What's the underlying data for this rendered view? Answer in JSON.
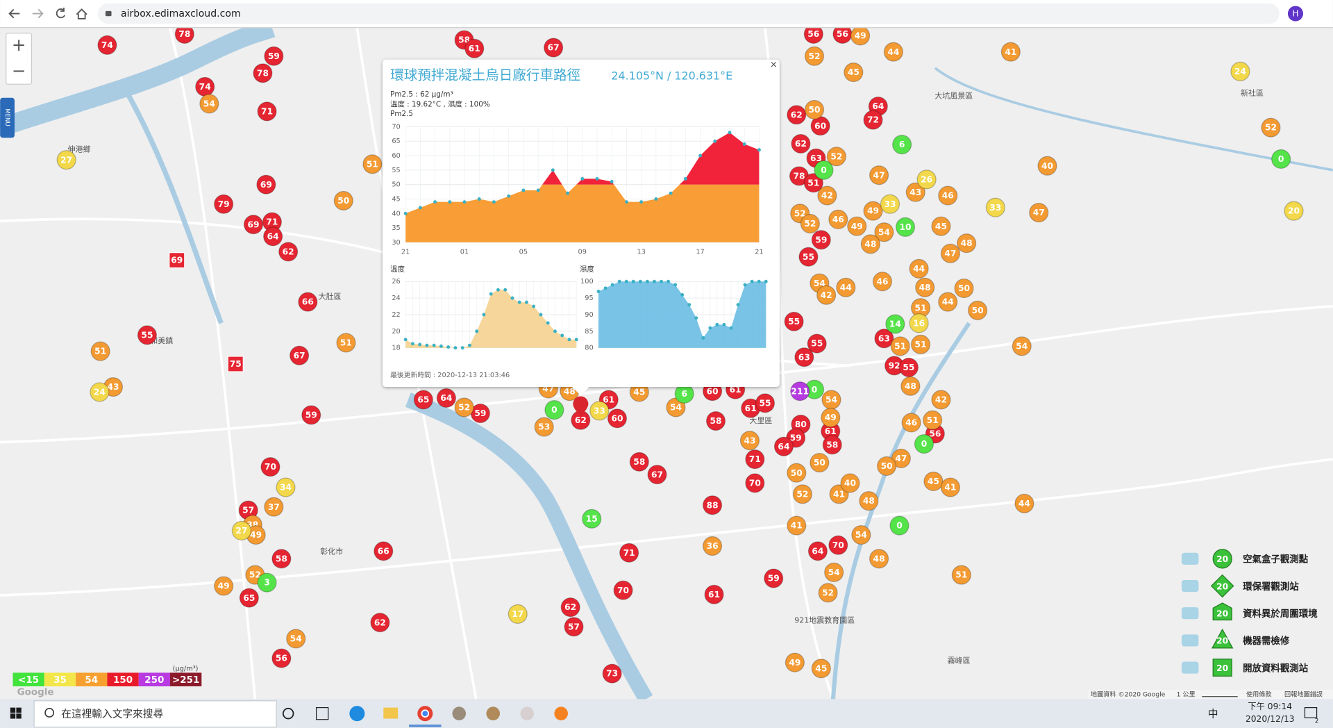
{
  "browser": {
    "url": "airbox.edimaxcloud.com",
    "profile": "H"
  },
  "map": {
    "zoom_in": "+",
    "zoom_out": "−",
    "menu": "MENU",
    "places": [
      "伸港鄉",
      "和美鎮",
      "大肚區",
      "彰化市",
      "大里區",
      "大坑風景區",
      "新社區",
      "霧峰區",
      "921地震教育園區"
    ],
    "markers": [
      {
        "color": "#e52531",
        "values": [
          74,
          78,
          59,
          78,
          74,
          71,
          69,
          79,
          69,
          71,
          64,
          62,
          66,
          55,
          67,
          59,
          70,
          57,
          58,
          65,
          66,
          62,
          56,
          58,
          61,
          67,
          65,
          64,
          59,
          62,
          60,
          61,
          58,
          67,
          71,
          70,
          62,
          57,
          73,
          88,
          61,
          59,
          71,
          70,
          58,
          56,
          56,
          64,
          72,
          63,
          92,
          55,
          56,
          70,
          64,
          61,
          58,
          80,
          59,
          64,
          62,
          62,
          60,
          63,
          78,
          51,
          59,
          55,
          55,
          55,
          63,
          60,
          61,
          61,
          55
        ]
      },
      {
        "color": "#f39a32",
        "values": [
          54,
          50,
          51,
          51,
          51,
          43,
          37,
          38,
          49,
          52,
          49,
          54,
          52,
          53,
          36,
          43,
          49,
          45,
          49,
          44,
          41,
          45,
          52,
          52,
          40,
          47,
          46,
          47,
          43,
          45,
          48,
          47,
          44,
          48,
          50,
          51,
          44,
          50,
          51,
          51,
          54,
          48,
          42,
          46,
          51,
          47,
          50,
          45,
          41,
          44,
          54,
          48,
          54,
          52,
          51,
          41,
          52,
          41,
          40,
          48,
          50,
          50,
          54,
          49,
          50,
          52,
          42,
          52,
          52,
          46,
          49,
          49,
          54,
          48,
          54,
          42,
          44,
          46,
          45,
          54,
          48,
          47
        ]
      },
      {
        "color": "#f2d84a",
        "values": [
          27,
          24,
          34,
          27,
          17,
          33,
          33,
          26,
          33,
          16,
          20,
          24
        ]
      },
      {
        "color": "#55e34a",
        "values": [
          15,
          0,
          0,
          6,
          0,
          10,
          14,
          0,
          0,
          0,
          6,
          3
        ]
      },
      {
        "color": "#b53be0",
        "values": [
          211
        ]
      },
      {
        "color": "#e52531",
        "shape": "square",
        "values": [
          69,
          75
        ]
      }
    ],
    "attribution": "地圖資料 ©2020 Google",
    "scale": "1 公里",
    "terms": "使用條款",
    "report": "回報地圖錯誤",
    "google": "Google"
  },
  "popup": {
    "title": "環球預拌混凝土烏日廠行車路徑",
    "coords": "24.105°N / 120.631°E",
    "pm_line": "Pm2.5 : 62 μg/m³",
    "env_line": "溫度 : 19.62°C , 濕度 : 100%",
    "close": "×",
    "updated": "最後更新時間 : 2020-12-13 21:03:46",
    "pm_chart": {
      "type": "area",
      "label": "Pm2.5",
      "x_labels": [
        "21",
        "01",
        "05",
        "09",
        "13",
        "17",
        "21"
      ],
      "values": [
        40,
        42,
        44,
        44,
        44,
        45,
        44,
        46,
        48,
        48,
        55,
        47,
        52,
        52,
        51,
        44,
        44,
        45,
        47,
        52,
        60,
        65,
        68,
        64,
        62
      ],
      "ylim": [
        30,
        70
      ],
      "yticks": [
        30,
        35,
        40,
        45,
        50,
        55,
        60,
        65,
        70
      ],
      "color_threshold": 50,
      "colors": {
        "below": "#f99d36",
        "above": "#f0233a"
      },
      "point_color": "#3ab0c3"
    },
    "temp_chart": {
      "type": "area",
      "label": "溫度",
      "values": [
        19,
        18.5,
        18.4,
        18.3,
        18.3,
        18.2,
        18.1,
        18,
        18,
        18.3,
        20,
        22,
        24.5,
        25,
        25,
        24,
        23.5,
        23.5,
        23,
        22,
        21,
        20,
        19.5,
        19,
        19
      ],
      "ylim": [
        18,
        26
      ],
      "yticks": [
        18,
        20,
        22,
        24,
        26
      ],
      "color": "#f5d18f",
      "point_color": "#3ab0c3"
    },
    "hum_chart": {
      "type": "area",
      "label": "濕度",
      "values": [
        97,
        98,
        99,
        100,
        100,
        100,
        100,
        100,
        100,
        100,
        100,
        99,
        96,
        93,
        89,
        83,
        86,
        87,
        87,
        86,
        93,
        99,
        100,
        100,
        100
      ],
      "ylim": [
        80,
        100
      ],
      "yticks": [
        80,
        85,
        90,
        95,
        100
      ],
      "color": "#69bde3",
      "point_color": "#3ab0c3"
    }
  },
  "pm_legend": {
    "unit": "(μg/m³)",
    "items": [
      {
        "label": "<15",
        "color": "#41e33c"
      },
      {
        "label": "35",
        "color": "#f3e64a"
      },
      {
        "label": "54",
        "color": "#f7a030"
      },
      {
        "label": "150",
        "color": "#e81b2a"
      },
      {
        "label": "250",
        "color": "#b83ae0"
      },
      {
        "label": ">251",
        "color": "#8b1a2a"
      }
    ]
  },
  "type_legend": {
    "items": [
      {
        "label": "空氣盒子觀測點",
        "count": 20
      },
      {
        "label": "環保署觀測站",
        "count": 20
      },
      {
        "label": "資料異於周圍環境",
        "count": 20
      },
      {
        "label": "機器需檢修",
        "count": 20
      },
      {
        "label": "開放資料觀測站",
        "count": 20
      }
    ]
  },
  "taskbar": {
    "search": "在這裡輸入文字來搜尋",
    "time": "下午 09:14",
    "date": "2020/12/13",
    "ime": "中",
    "notifications": "2"
  }
}
